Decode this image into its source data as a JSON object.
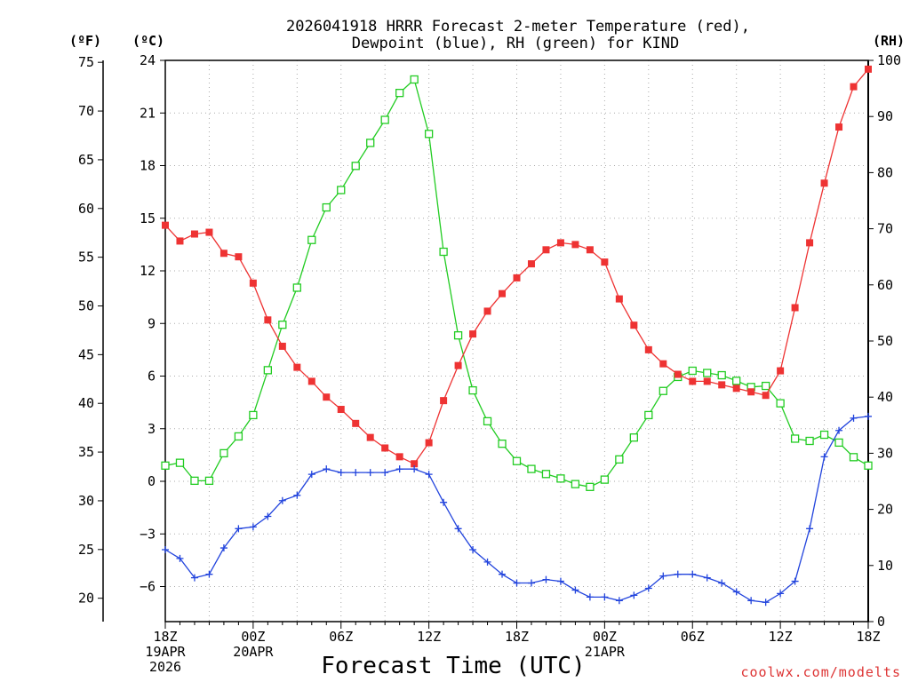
{
  "chart_data": {
    "type": "line",
    "title": [
      "2026041918 HRRR Forecast 2-meter Temperature (red),",
      "Dewpoint (blue), RH (green) for KIND"
    ],
    "xlabel": "Forecast Time (UTC)",
    "units": {
      "fahrenheit": "(ºF)",
      "celsius": "(ºC)",
      "rh": "(RH)"
    },
    "source": "coolwx.com/modelts",
    "x_range": [
      0,
      48
    ],
    "x_ticks": [
      {
        "x": 0,
        "lines": [
          "18Z",
          "19APR",
          "2026"
        ]
      },
      {
        "x": 6,
        "lines": [
          "00Z",
          "20APR"
        ]
      },
      {
        "x": 12,
        "lines": [
          "06Z"
        ]
      },
      {
        "x": 18,
        "lines": [
          "12Z"
        ]
      },
      {
        "x": 24,
        "lines": [
          "18Z"
        ]
      },
      {
        "x": 30,
        "lines": [
          "00Z",
          "21APR"
        ]
      },
      {
        "x": 36,
        "lines": [
          "06Z"
        ]
      },
      {
        "x": 42,
        "lines": [
          "12Z"
        ]
      },
      {
        "x": 48,
        "lines": [
          "18Z"
        ]
      }
    ],
    "celsius_axis": {
      "range": [
        -8,
        24
      ],
      "ticks": [
        "24",
        "21",
        "18",
        "15",
        "12",
        "9",
        "6",
        "3",
        "0",
        "−3",
        "−6"
      ],
      "tick_values": [
        24,
        21,
        18,
        15,
        12,
        9,
        6,
        3,
        0,
        -3,
        -6
      ]
    },
    "fahrenheit_axis": {
      "ticks": [
        "75",
        "70",
        "65",
        "60",
        "55",
        "50",
        "45",
        "40",
        "35",
        "30",
        "25",
        "20"
      ],
      "tick_values": [
        75,
        70,
        65,
        60,
        55,
        50,
        45,
        40,
        35,
        30,
        25,
        20
      ]
    },
    "rh_axis": {
      "range": [
        0,
        100
      ],
      "ticks": [
        "100",
        "90",
        "80",
        "70",
        "60",
        "50",
        "40",
        "30",
        "20",
        "10",
        "0"
      ],
      "tick_values": [
        100,
        90,
        80,
        70,
        60,
        50,
        40,
        30,
        20,
        10,
        0
      ]
    },
    "series": [
      {
        "name": "Temperature",
        "unit": "°C",
        "color": "#ee3333",
        "marker": "filled-square",
        "values": [
          14.6,
          13.7,
          14.1,
          14.2,
          13.0,
          12.8,
          11.3,
          9.2,
          7.7,
          6.5,
          5.7,
          4.8,
          4.1,
          3.3,
          2.5,
          1.9,
          1.4,
          1.0,
          2.2,
          4.6,
          6.6,
          8.4,
          9.7,
          10.7,
          11.6,
          12.4,
          13.2,
          13.6,
          13.5,
          13.2,
          12.5,
          10.4,
          8.9,
          7.5,
          6.7,
          6.1,
          5.7,
          5.7,
          5.5,
          5.3,
          5.1,
          4.9,
          6.3,
          9.9,
          13.6,
          17.0,
          20.2,
          22.5,
          23.5
        ]
      },
      {
        "name": "Dewpoint",
        "unit": "°C",
        "color": "#2244dd",
        "marker": "plus",
        "values": [
          -3.9,
          -4.4,
          -5.5,
          -5.3,
          -3.8,
          -2.7,
          -2.6,
          -2.0,
          -1.1,
          -0.8,
          0.4,
          0.7,
          0.5,
          0.5,
          0.5,
          0.5,
          0.7,
          0.7,
          0.4,
          -1.2,
          -2.7,
          -3.9,
          -4.6,
          -5.3,
          -5.8,
          -5.8,
          -5.6,
          -5.7,
          -6.2,
          -6.6,
          -6.6,
          -6.8,
          -6.5,
          -6.1,
          -5.4,
          -5.3,
          -5.3,
          -5.5,
          -5.8,
          -6.3,
          -6.8,
          -6.9,
          -6.4,
          -5.7,
          -2.7,
          1.4,
          2.9,
          3.6,
          3.7
        ]
      },
      {
        "name": "RH",
        "unit": "%",
        "color": "#22cc22",
        "marker": "open-square",
        "values": [
          27.8,
          28.3,
          25.1,
          25.1,
          30.0,
          33.0,
          36.8,
          44.8,
          52.9,
          59.5,
          68.0,
          73.8,
          76.9,
          81.2,
          85.3,
          89.4,
          94.2,
          96.6,
          86.9,
          65.9,
          51.0,
          41.2,
          35.7,
          31.7,
          28.6,
          27.2,
          26.3,
          25.5,
          24.5,
          24.0,
          25.3,
          28.9,
          32.8,
          36.8,
          41.1,
          43.6,
          44.7,
          44.3,
          43.9,
          42.9,
          41.8,
          42.0,
          38.9,
          32.6,
          32.2,
          33.3,
          31.9,
          29.3,
          27.8
        ]
      }
    ],
    "legend": "none; series named in title",
    "grid": true
  }
}
